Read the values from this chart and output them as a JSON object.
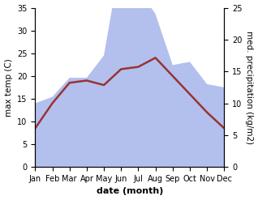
{
  "months": [
    "Jan",
    "Feb",
    "Mar",
    "Apr",
    "May",
    "Jun",
    "Jul",
    "Aug",
    "Sep",
    "Oct",
    "Nov",
    "Dec"
  ],
  "month_x": [
    1,
    2,
    3,
    4,
    5,
    6,
    7,
    8,
    9,
    10,
    11,
    12
  ],
  "temp": [
    8.5,
    14.0,
    18.5,
    19.0,
    18.0,
    21.5,
    22.0,
    24.0,
    20.0,
    16.0,
    12.0,
    8.5
  ],
  "precip": [
    10.0,
    11.0,
    14.0,
    14.0,
    17.5,
    33.0,
    28.0,
    24.0,
    16.0,
    16.5,
    13.0,
    12.5
  ],
  "temp_ylim": [
    0,
    35
  ],
  "precip_ylim": [
    0,
    25
  ],
  "temp_color": "#993333",
  "precip_color_fill": "#b3c0ee",
  "xlabel": "date (month)",
  "ylabel_left": "max temp (C)",
  "ylabel_right": "med. precipitation (kg/m2)",
  "temp_linewidth": 1.8,
  "xlabel_fontsize": 8,
  "ylabel_fontsize": 7.5,
  "tick_fontsize": 7
}
